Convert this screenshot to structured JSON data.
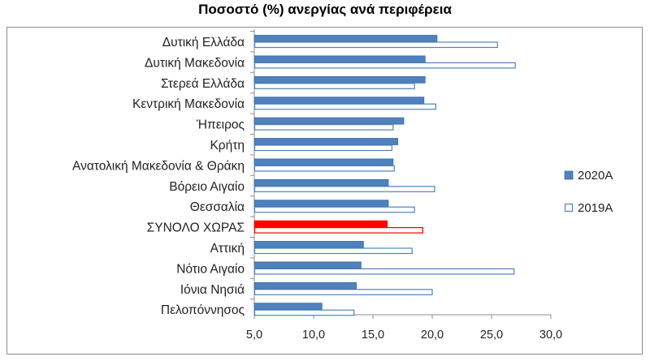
{
  "colors": {
    "bar_2020": "#4f81bd",
    "bar_2020_edge": "#3a6aa5",
    "bar_2019_fill": "#ffffff",
    "bar_2019_edge": "#4f81bd",
    "highlight": "#ff0000",
    "axis": "#8c8c8c"
  },
  "chart_data": {
    "type": "bar",
    "orientation": "horizontal",
    "title": "Ποσοστό (%) ανεργίας ανά περιφέρεια",
    "xlabel": "",
    "ylabel": "",
    "xlim": [
      5.0,
      30.0
    ],
    "x_ticks": [
      "5,0",
      "10,0",
      "15,0",
      "20,0",
      "25,0",
      "30,0"
    ],
    "grid": false,
    "legend_position": "right",
    "highlight_category": "ΣΥΝΟΛΟ ΧΩΡΑΣ",
    "categories": [
      "Δυτική Ελλάδα",
      "Δυτική Μακεδονία",
      "Στερεά Ελλάδα",
      "Κεντρική Μακεδονία",
      "Ήπειρος",
      "Κρήτη",
      "Ανατολική Μακεδονία & Θράκη",
      "Βόρειο Αιγαίο",
      "Θεσσαλία",
      "ΣΥΝΟΛΟ ΧΩΡΑΣ",
      "Αττική",
      "Νότιο Αιγαίο",
      "Ιόνια Νησιά",
      "Πελοπόννησος"
    ],
    "series": [
      {
        "name": "2020Α",
        "style": "filled",
        "values": [
          20.4,
          19.4,
          19.4,
          19.3,
          17.6,
          17.1,
          16.7,
          16.3,
          16.3,
          16.2,
          14.2,
          14.0,
          13.6,
          10.7
        ]
      },
      {
        "name": "2019Α",
        "style": "outline",
        "values": [
          25.5,
          27.0,
          18.5,
          20.3,
          16.7,
          16.6,
          16.8,
          20.2,
          18.5,
          19.2,
          18.3,
          26.9,
          20.0,
          13.4
        ]
      }
    ]
  }
}
